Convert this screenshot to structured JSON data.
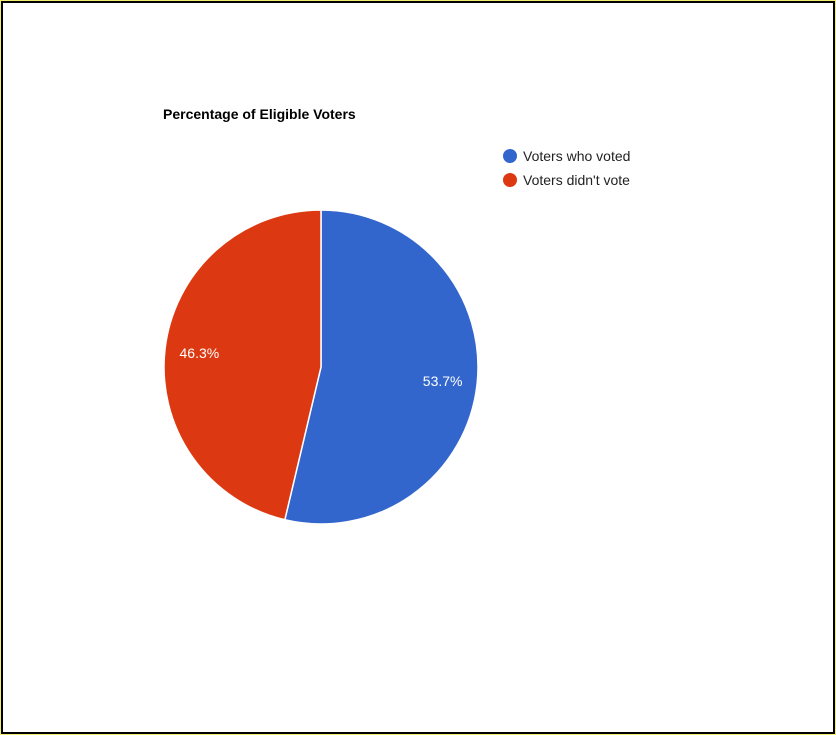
{
  "chart_data": {
    "type": "pie",
    "title": "Percentage of Eligible Voters",
    "legend_position": "top-right",
    "slices": [
      {
        "name": "Voters who voted",
        "value": 53.7,
        "label": "53.7%",
        "color": "#3366cc"
      },
      {
        "name": "Voters didn't vote",
        "value": 46.3,
        "label": "46.3%",
        "color": "#dc3912"
      }
    ]
  }
}
